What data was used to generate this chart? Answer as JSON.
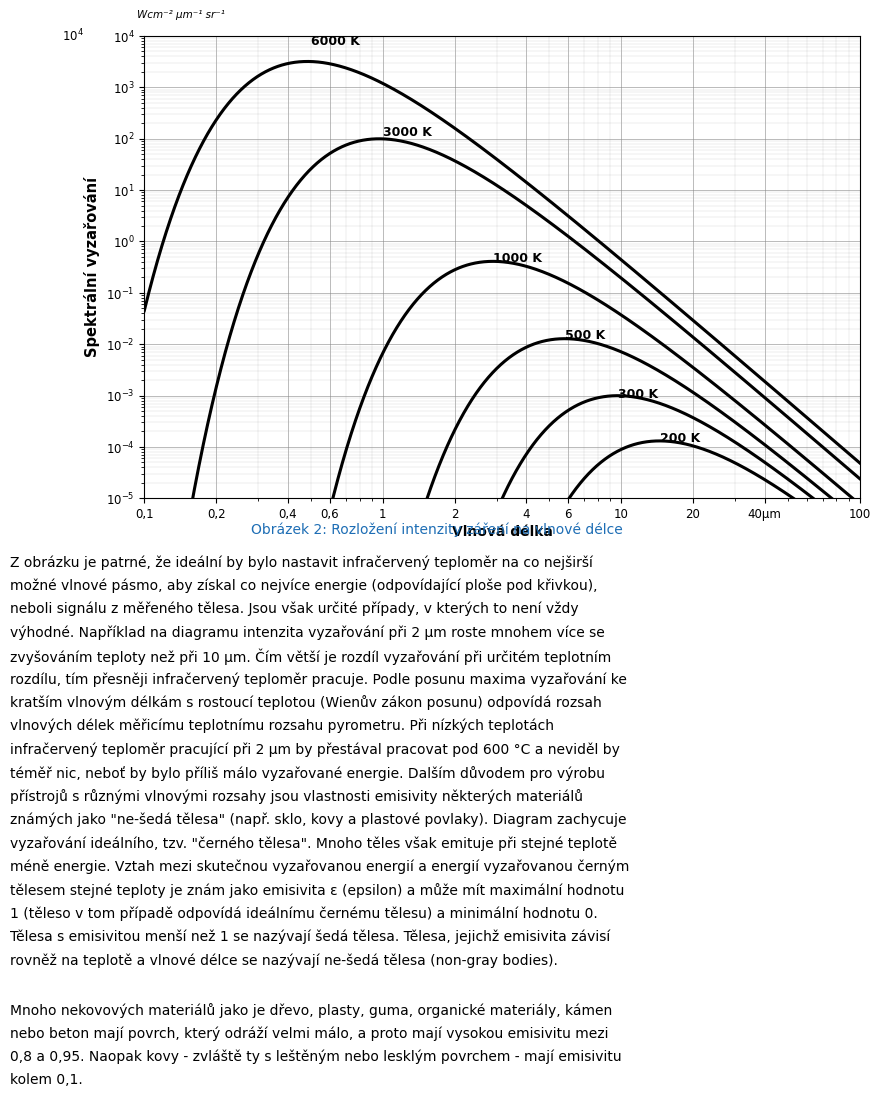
{
  "temperatures": [
    6000,
    3000,
    1000,
    500,
    300,
    200
  ],
  "temp_labels": [
    "6000 K",
    "3000 K",
    "1000 K",
    "500 K",
    "300 K",
    "200 K"
  ],
  "ylabel": "Spektrální vyzařování",
  "unit_label": "Wcm⁻² μm⁻¹ sr⁻¹",
  "xlabel": "Vlnová délka",
  "ylim": [
    1e-05,
    10000.0
  ],
  "xlim": [
    0.1,
    100
  ],
  "caption": "Obrázek 2: Rozložení intenzity záření na vlnové délce",
  "caption_color": "#1e6eb5",
  "body_lines": [
    "Z obrázku je patrné, že ideální by bylo nastavit infračervený teploměr na co nejširší",
    "možné vlnové pásmo, aby získal co nejvíce energie (odpovídající ploše pod křivkou),",
    "neboli signálu z měřeného tělesa. Jsou však určité případy, v kterých to není vždy",
    "výhodné. Například na diagramu intenzita vyzařování při 2 μm roste mnohem více se",
    "zvyšováním teploty než při 10 μm. Čím větší je rozdíl vyzařování při určitém teplotním",
    "rozdílu, tím přesněji infračervený teploměr pracuje. Podle posunu maxima vyzařování ke",
    "kratším vlnovým délkám s rostoucí teplotou (Wienův zákon posunu) odpovídá rozsah",
    "vlnových délek měřicímu teplotnímu rozsahu pyrometru. Při nízkých teplotách",
    "infračervený teploměr pracující při 2 μm by přestával pracovat pod 600 °C a neviděl by",
    "téměř nic, neboť by bylo příliš málo vyzařované energie. Dalším důvodem pro výrobu",
    "přístrojů s různými vlnovými rozsahy jsou vlastnosti emisivity některých materiálů",
    "známých jako \"ne-šedá tělesa\" (např. sklo, kovy a plastové povlaky). Diagram zachycuje",
    "vyzařování ideálního, tzv. \"černého tělesa\". Mnoho těles však emituje při stejné teplotě",
    "méně energie. Vztah mezi skutečnou vyzařovanou energií a energií vyzařovanou černým",
    "tělesem stejné teploty je znám jako emisivita ε (epsilon) a může mít maximální hodnotu",
    "1 (těleso v tom případě odpovídá ideálnímu černému tělesu) a minimální hodnotu 0.",
    "Tělesa s emisivitou menší než 1 se nazývají šedá tělesa. Tělesa, jejichž emisivita závisí",
    "rovněž na teplotě a vlnové délce se nazývají ne-šedá tělesa (non-gray bodies)."
  ],
  "body_lines2": [
    "Mnoho nekovových materiálů jako je dřevo, plasty, guma, organické materiály, kámen",
    "nebo beton mají povrch, který odráží velmi málo, a proto mají vysokou emisivitu mezi",
    "0,8 a 0,95. Naopak kovy - zvláště ty s leštěným nebo lesklým povrchem - mají emisivitu",
    "kolem 0,1."
  ],
  "line_width": 2.2,
  "bg_color": "#ffffff",
  "label_positions": {
    "6000": [
      0.5,
      6000.0,
      "6000 K"
    ],
    "3000": [
      1.0,
      100.0,
      "3000 K"
    ],
    "1000": [
      2.9,
      0.35,
      "1000 K"
    ],
    "500": [
      5.8,
      0.011,
      "500 K"
    ],
    "300": [
      9.7,
      0.0008,
      "300 K"
    ],
    "200": [
      14.5,
      0.00011,
      "200 K"
    ]
  }
}
